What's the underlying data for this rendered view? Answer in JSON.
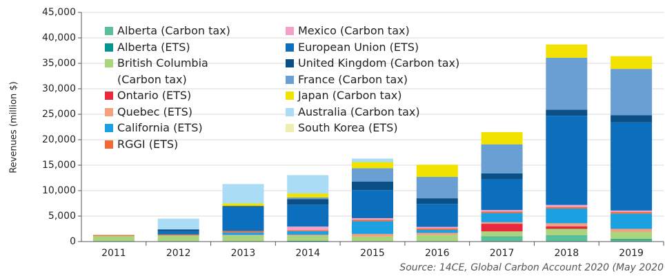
{
  "chart_data": {
    "type": "stacked_bar",
    "y_label": "Revenues (million $)",
    "source": "Source: 14CE, Global Carbon Account 2020 (May 2020",
    "categories": [
      "2011",
      "2012",
      "2013",
      "2014",
      "2015",
      "2016",
      "2017",
      "2018",
      "2019"
    ],
    "ylim": [
      0,
      45000
    ],
    "yticks": [
      0,
      {
        "value": 5000,
        "label": "5,000"
      },
      {
        "value": 10000,
        "label": "10,000"
      },
      {
        "value": 15000,
        "label": "15,000"
      },
      {
        "value": 20000,
        "label": "20,000"
      },
      {
        "value": 25000,
        "label": "25,000"
      },
      {
        "value": 30000,
        "label": "30,000"
      },
      {
        "value": 35000,
        "label": "35,000"
      },
      {
        "value": 40000,
        "label": "40,000"
      },
      {
        "value": 45000,
        "label": "45,000"
      }
    ],
    "grid": true,
    "series": [
      {
        "name": "Alberta (Carbon tax)",
        "color": "#5bbf9a",
        "values": [
          0,
          0,
          0,
          0,
          0,
          0,
          900,
          1100,
          300
        ]
      },
      {
        "name": "Alberta (ETS)",
        "color": "#00968f",
        "values": [
          100,
          100,
          100,
          150,
          100,
          100,
          100,
          100,
          200
        ]
      },
      {
        "name": "British Columbia (Carbon tax)",
        "color": "#a8d57e",
        "values": [
          1000,
          1100,
          1100,
          1000,
          900,
          1200,
          1000,
          1300,
          1400
        ]
      },
      {
        "name": "Ontario (ETS)",
        "color": "#e8283c",
        "values": [
          0,
          0,
          0,
          0,
          0,
          0,
          1500,
          500,
          0
        ]
      },
      {
        "name": "Quebec (ETS)",
        "color": "#f4a07c",
        "values": [
          0,
          0,
          100,
          200,
          500,
          400,
          300,
          600,
          600
        ]
      },
      {
        "name": "California (ETS)",
        "color": "#1ba1e2",
        "values": [
          0,
          0,
          500,
          700,
          2500,
          600,
          1800,
          2900,
          3000
        ]
      },
      {
        "name": "RGGI (ETS)",
        "color": "#f26a36",
        "values": [
          200,
          200,
          300,
          200,
          300,
          300,
          300,
          300,
          300
        ]
      },
      {
        "name": "Mexico (Carbon tax)",
        "color": "#f4a0c8",
        "values": [
          0,
          0,
          0,
          700,
          300,
          300,
          300,
          400,
          300
        ]
      },
      {
        "name": "European Union (ETS)",
        "color": "#0c6fbe",
        "values": [
          0,
          700,
          4700,
          4300,
          5500,
          4500,
          6000,
          17500,
          17300
        ]
      },
      {
        "name": "United Kingdom (Carbon tax)",
        "color": "#0a4f86",
        "values": [
          0,
          300,
          200,
          1100,
          1700,
          1100,
          1200,
          1200,
          1400
        ]
      },
      {
        "name": "France (Carbon tax)",
        "color": "#6a9fd4",
        "values": [
          0,
          0,
          0,
          300,
          2600,
          4200,
          5700,
          10200,
          9100
        ]
      },
      {
        "name": "Japan (Carbon tax)",
        "color": "#f2e200",
        "values": [
          0,
          0,
          500,
          800,
          1200,
          2400,
          2400,
          2600,
          2500
        ]
      },
      {
        "name": "Australia (Carbon tax)",
        "color": "#aadcf5",
        "values": [
          0,
          2100,
          3800,
          3600,
          700,
          0,
          0,
          0,
          0
        ]
      },
      {
        "name": "South Korea (ETS)",
        "color": "#eeeeb0",
        "values": [
          0,
          0,
          0,
          0,
          0,
          0,
          0,
          0,
          0
        ]
      }
    ]
  }
}
